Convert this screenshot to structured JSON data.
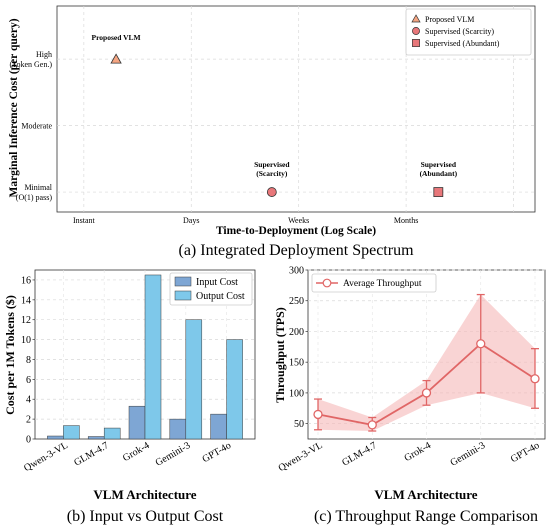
{
  "chart_data": [
    {
      "type": "scatter",
      "caption": "(a) Integrated Deployment Spectrum",
      "xlabel": "Time-to-Deployment (Log Scale)",
      "ylabel": "Marginal Inference Cost (per query)",
      "x_ticks": [
        "Instant",
        "Days",
        "Weeks",
        "Months"
      ],
      "y_ticks": [
        {
          "lines": [
            "High",
            "(Token Gen.)"
          ]
        },
        {
          "lines": [
            "Moderate"
          ]
        },
        {
          "lines": [
            "Minimal",
            "(O(1) pass)"
          ]
        }
      ],
      "grid": true,
      "legend_position": "top-right",
      "points": [
        {
          "name": "Proposed VLM",
          "marker": "triangle",
          "x": 0.3,
          "y": 2,
          "annotation": [
            "Proposed VLM"
          ],
          "color": "#f4a582"
        },
        {
          "name": "Supervised (Scarcity)",
          "marker": "circle",
          "x": 1.75,
          "y": 0,
          "annotation": [
            "Supervised",
            "(Scarcity)"
          ],
          "color": "#e8777a"
        },
        {
          "name": "Supervised (Abundant)",
          "marker": "square",
          "x": 3.3,
          "y": 0,
          "annotation": [
            "Supervised",
            "(Abundant)"
          ],
          "color": "#e8777a"
        }
      ]
    },
    {
      "type": "bar",
      "caption": "(b) Input vs Output Cost",
      "xlabel": "VLM Architecture",
      "ylabel": "Cost per 1M Tokens ($)",
      "categories": [
        "Qwen-3-VL",
        "GLM-4.7",
        "Grok-4",
        "Gemini-3",
        "GPT-4o"
      ],
      "ylim": [
        0,
        17
      ],
      "y_ticks": [
        0,
        2,
        4,
        6,
        8,
        10,
        12,
        14,
        16
      ],
      "grid": true,
      "legend_position": "top-right",
      "series": [
        {
          "name": "Input Cost",
          "values": [
            0.3,
            0.25,
            3.3,
            2.0,
            2.5
          ],
          "color": "#7ea6d4"
        },
        {
          "name": "Output Cost",
          "values": [
            1.35,
            1.1,
            16.5,
            12.0,
            10.0
          ],
          "color": "#7ec8ea"
        }
      ]
    },
    {
      "type": "line",
      "caption": "(c) Throughput Range Comparison",
      "xlabel": "VLM Architecture",
      "ylabel": "Throughput (TPS)",
      "categories": [
        "Qwen-3-VL",
        "GLM-4.7",
        "Grok-4",
        "Gemini-3",
        "GPT-4o"
      ],
      "ylim": [
        25,
        300
      ],
      "y_ticks": [
        50,
        100,
        150,
        200,
        250,
        300
      ],
      "grid": true,
      "legend_position": "top-left",
      "series": [
        {
          "name": "Average Throughput",
          "values": [
            65,
            48,
            100,
            180,
            123
          ],
          "min": [
            40,
            38,
            80,
            100,
            75
          ],
          "max": [
            90,
            60,
            120,
            260,
            172
          ],
          "color": "#e06666",
          "fill": "#f5b8b8"
        }
      ]
    }
  ]
}
